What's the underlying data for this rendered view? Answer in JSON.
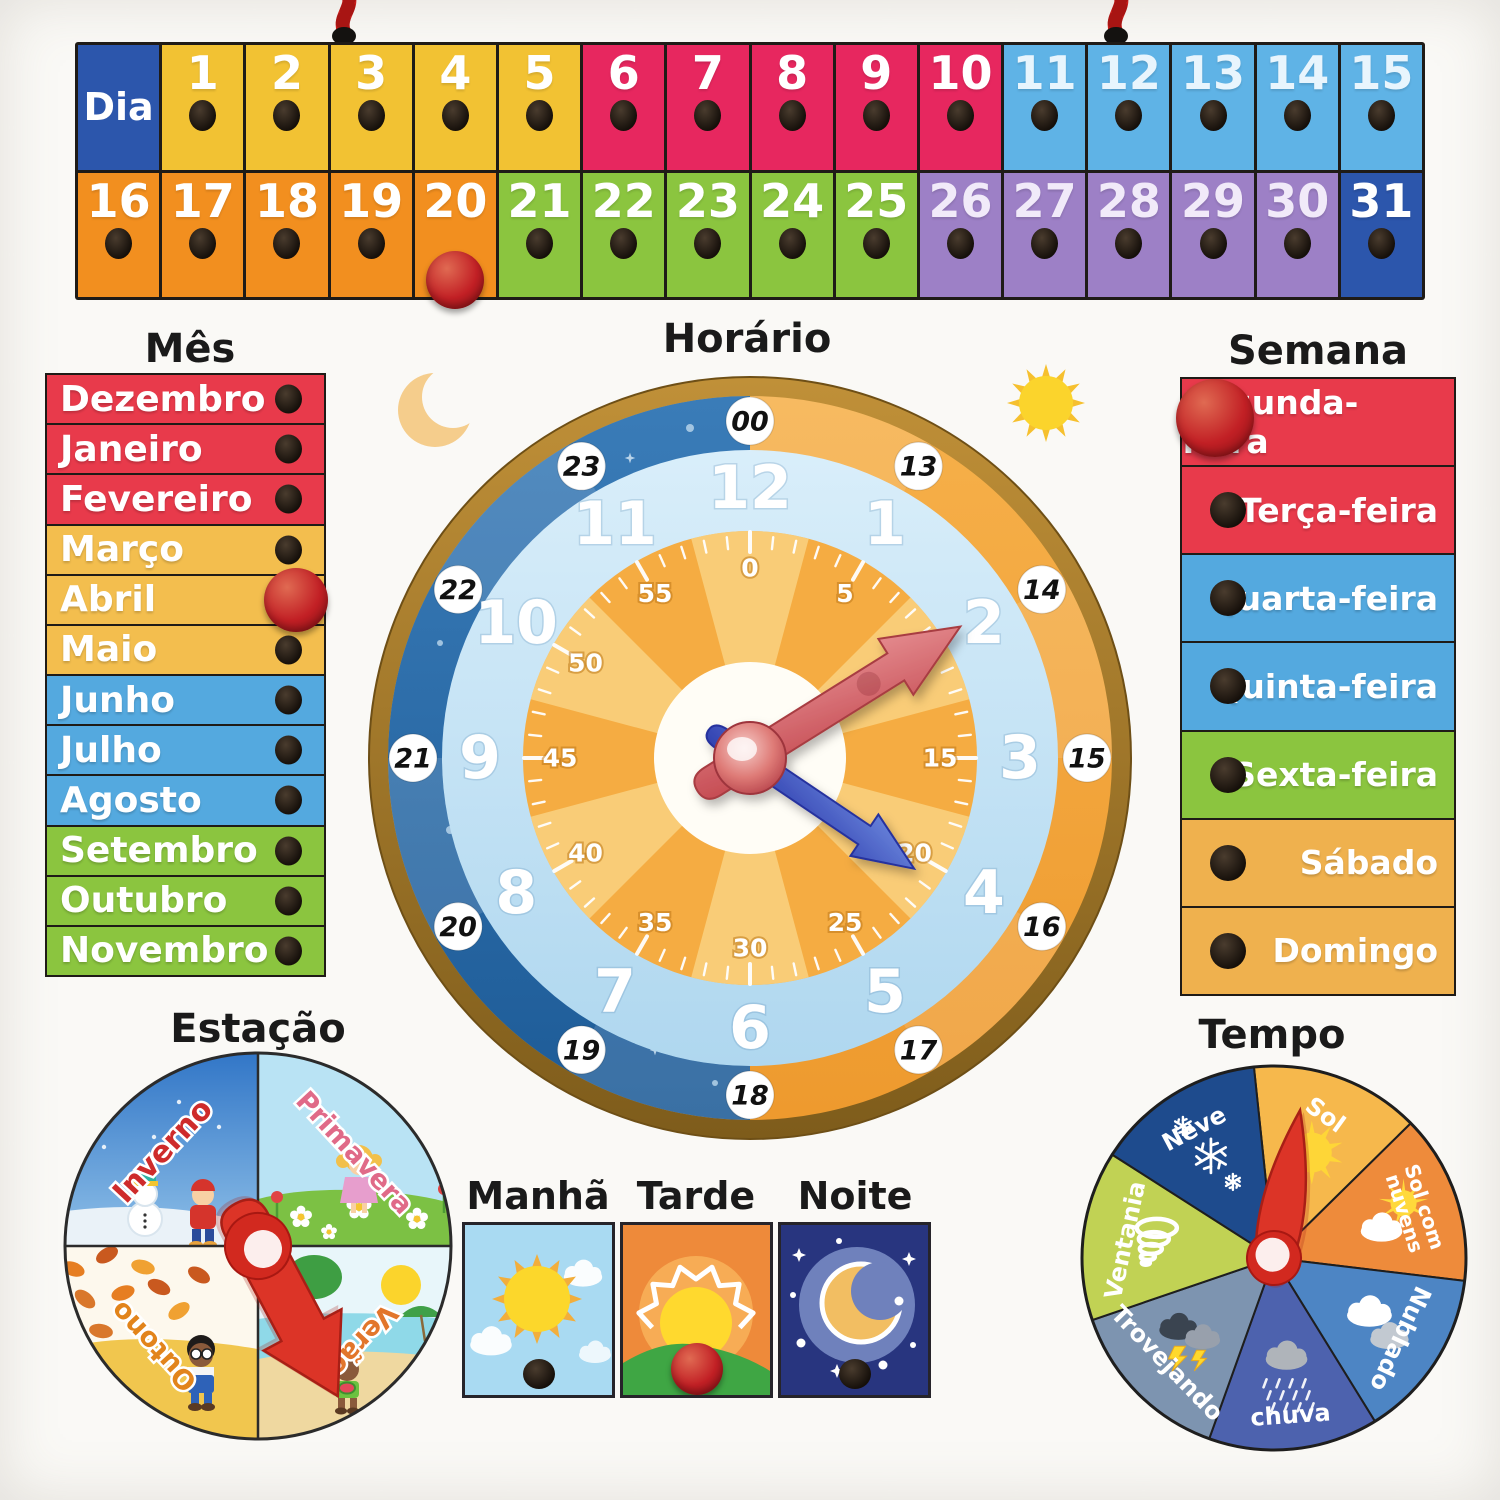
{
  "palette": {
    "yellow": "#F2C233",
    "pink": "#E7275F",
    "light_blue": "#5FB3E6",
    "orange": "#F28F1F",
    "green": "#8BC53F",
    "purple": "#9D80C6",
    "dark_blue": "#2C56AC",
    "band_red": "#E83A4B",
    "band_yellow": "#F3BE4E",
    "band_blue": "#54A9DF",
    "band_green": "#8BC53F",
    "band_orange": "#EFB14E",
    "peg_red": "#C22025",
    "peg_hole_black": "#17110C",
    "clock_night": "#2B6BA8",
    "clock_day": "#F2A237",
    "clock_band": "#C6E4F6",
    "clock_minute_disc": "#F5AC42",
    "clock_rim": "#A87B2E"
  },
  "days": {
    "header_label": "Dia",
    "selected_day": "20",
    "cells": [
      {
        "n": "1",
        "g": "yellow"
      },
      {
        "n": "2",
        "g": "yellow"
      },
      {
        "n": "3",
        "g": "yellow"
      },
      {
        "n": "4",
        "g": "yellow"
      },
      {
        "n": "5",
        "g": "yellow"
      },
      {
        "n": "6",
        "g": "pink"
      },
      {
        "n": "7",
        "g": "pink"
      },
      {
        "n": "8",
        "g": "pink"
      },
      {
        "n": "9",
        "g": "pink"
      },
      {
        "n": "10",
        "g": "pink"
      },
      {
        "n": "11",
        "g": "light_blue"
      },
      {
        "n": "12",
        "g": "light_blue"
      },
      {
        "n": "13",
        "g": "light_blue"
      },
      {
        "n": "14",
        "g": "light_blue"
      },
      {
        "n": "15",
        "g": "light_blue"
      },
      {
        "n": "16",
        "g": "orange"
      },
      {
        "n": "17",
        "g": "orange"
      },
      {
        "n": "18",
        "g": "orange"
      },
      {
        "n": "19",
        "g": "orange"
      },
      {
        "n": "20",
        "g": "orange"
      },
      {
        "n": "21",
        "g": "green"
      },
      {
        "n": "22",
        "g": "green"
      },
      {
        "n": "23",
        "g": "green"
      },
      {
        "n": "24",
        "g": "green"
      },
      {
        "n": "25",
        "g": "green"
      },
      {
        "n": "26",
        "g": "purple"
      },
      {
        "n": "27",
        "g": "purple"
      },
      {
        "n": "28",
        "g": "purple"
      },
      {
        "n": "29",
        "g": "purple"
      },
      {
        "n": "30",
        "g": "purple"
      },
      {
        "n": "31",
        "g": "dark_blue"
      }
    ]
  },
  "months": {
    "title": "Mês",
    "selected": "Abril",
    "items": [
      {
        "label": "Dezembro",
        "g": "band_red"
      },
      {
        "label": "Janeiro",
        "g": "band_red"
      },
      {
        "label": "Fevereiro",
        "g": "band_red"
      },
      {
        "label": "Março",
        "g": "band_yellow"
      },
      {
        "label": "Abril",
        "g": "band_yellow"
      },
      {
        "label": "Maio",
        "g": "band_yellow"
      },
      {
        "label": "Junho",
        "g": "band_blue"
      },
      {
        "label": "Julho",
        "g": "band_blue"
      },
      {
        "label": "Agosto",
        "g": "band_blue"
      },
      {
        "label": "Setembro",
        "g": "band_green"
      },
      {
        "label": "Outubro",
        "g": "band_green"
      },
      {
        "label": "Novembro",
        "g": "band_green"
      }
    ]
  },
  "week": {
    "title": "Semana",
    "selected": "Segunda-feira",
    "items": [
      {
        "label": "Segunda-feira",
        "g": "band_red"
      },
      {
        "label": "Terça-feira",
        "g": "band_red"
      },
      {
        "label": "Quarta-feira",
        "g": "band_blue"
      },
      {
        "label": "Quinta-feira",
        "g": "band_blue"
      },
      {
        "label": "Sexta-feira",
        "g": "band_green"
      },
      {
        "label": "Sábado",
        "g": "band_orange"
      },
      {
        "label": "Domingo",
        "g": "band_orange"
      }
    ]
  },
  "clock": {
    "title": "Horário",
    "hours_inner": [
      "12",
      "1",
      "2",
      "3",
      "4",
      "5",
      "6",
      "7",
      "8",
      "9",
      "10",
      "11"
    ],
    "hours_outer": [
      "00",
      "13",
      "14",
      "15",
      "16",
      "17",
      "18",
      "19",
      "20",
      "21",
      "22",
      "23"
    ],
    "minutes": [
      "0",
      "5",
      "10",
      "15",
      "20",
      "25",
      "30",
      "35",
      "40",
      "45",
      "50",
      "55"
    ],
    "time_shown": "2:20",
    "left_icon": "moon-icon",
    "right_icon": "sun-icon"
  },
  "day_periods": {
    "selected": "Tarde",
    "items": [
      {
        "label": "Manhã",
        "icon": "morning-sun-clouds-icon"
      },
      {
        "label": "Tarde",
        "icon": "sunset-over-hill-icon"
      },
      {
        "label": "Noite",
        "icon": "moon-and-stars-icon"
      }
    ]
  },
  "seasons": {
    "title": "Estação",
    "pointer_to": "Verão",
    "items": [
      {
        "label": "Inverno",
        "icon": "winter-snowman-icon",
        "label_color": "#CE2B2B"
      },
      {
        "label": "Primavera",
        "icon": "spring-flowers-icon",
        "label_color": "#E06A88"
      },
      {
        "label": "Outono",
        "icon": "autumn-leaves-icon",
        "label_color": "#E2841B"
      },
      {
        "label": "Verão",
        "icon": "summer-beach-icon",
        "label_color": "#E2762B"
      }
    ]
  },
  "weather": {
    "title": "Tempo",
    "pointer_to": "Sol",
    "items": [
      {
        "label": "Sol",
        "icon": "sun-icon",
        "color": "#F6B84C"
      },
      {
        "label": "Sol com nuvens",
        "icon": "sun-cloud-icon",
        "color": "#EE8B3B"
      },
      {
        "label": "Nublado",
        "icon": "clouds-icon",
        "color": "#4D85C4"
      },
      {
        "label": "chuva",
        "icon": "rain-icon",
        "color": "#4D62AE"
      },
      {
        "label": "Trovejando",
        "icon": "storm-icon",
        "color": "#7D94B0"
      },
      {
        "label": "Ventania",
        "icon": "tornado-icon",
        "color": "#C1D254"
      },
      {
        "label": "Neve",
        "icon": "snowflake-icon",
        "color": "#1E4B8D"
      }
    ]
  }
}
